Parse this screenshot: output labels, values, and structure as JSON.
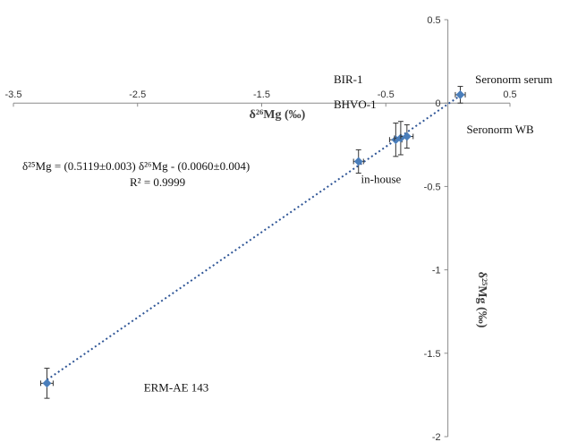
{
  "chart_data": {
    "type": "scatter",
    "x_axis": {
      "label": "δ²⁶Mg (‰)",
      "range": [
        -3.5,
        0.5
      ],
      "ticks": [
        -3.5,
        -2.5,
        -1.5,
        -0.5,
        0.5
      ],
      "tick_labels": [
        "-3.5",
        "-2.5",
        "-1.5",
        "-0.5",
        "0.5"
      ]
    },
    "y_axis": {
      "label": "δ²⁵Mg (‰)",
      "range": [
        -2,
        0.5
      ],
      "ticks": [
        0.5,
        0,
        -0.5,
        -1,
        -1.5,
        -2
      ],
      "tick_labels": [
        "0.5",
        "0",
        "-0.5",
        "-1",
        "-1.5",
        "-2"
      ]
    },
    "grid": false,
    "series": [
      {
        "color": "#4a7ebb",
        "points": [
          {
            "x": -3.23,
            "y": -1.68,
            "xerr": 0.05,
            "yerr": 0.09,
            "label": "ERM-AE 143"
          },
          {
            "x": -0.72,
            "y": -0.35,
            "xerr": 0.04,
            "yerr": 0.07,
            "label": "in-house"
          },
          {
            "x": -0.42,
            "y": -0.22,
            "xerr": 0.05,
            "yerr": 0.1,
            "label": "BIR-1"
          },
          {
            "x": -0.38,
            "y": -0.21,
            "xerr": 0.05,
            "yerr": 0.1,
            "label": ""
          },
          {
            "x": -0.33,
            "y": -0.2,
            "xerr": 0.05,
            "yerr": 0.07,
            "label": "BHVO-1"
          },
          {
            "x": 0.1,
            "y": 0.05,
            "xerr": 0.04,
            "yerr": 0.05,
            "label": "Seronorm serum"
          }
        ]
      }
    ],
    "trendline": {
      "style": "dotted",
      "color": "#2e5596",
      "x_range": [
        -3.23,
        0.1
      ],
      "equation": "δ²⁵Mg = (0.5119±0.003) δ²⁶Mg  - (0.0060±0.004)",
      "r_squared": "R² = 0.9999"
    },
    "annotations": [
      {
        "text": "BIR-1",
        "x": -0.92,
        "y": 0.12
      },
      {
        "text": "BHVO-1",
        "x": -0.92,
        "y": -0.03
      },
      {
        "text": "in-house",
        "x": -0.7,
        "y": -0.48
      },
      {
        "text": "Seronorm serum",
        "x": 0.22,
        "y": 0.12
      },
      {
        "text": "Seronorm WB",
        "x": 0.15,
        "y": -0.18
      },
      {
        "text": "ERM-AE 143",
        "x": -2.45,
        "y": -1.73
      }
    ]
  }
}
